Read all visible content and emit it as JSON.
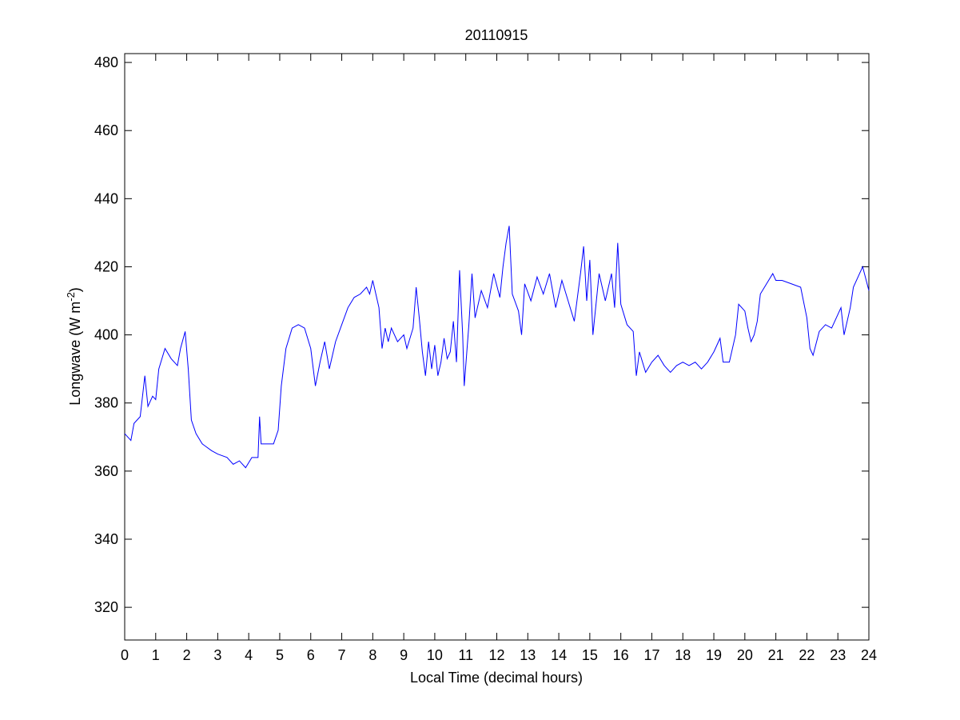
{
  "chart_data": {
    "type": "line",
    "title": "20110915",
    "xlabel": "Local Time (decimal hours)",
    "ylabel": {
      "text": "Longwave (W m",
      "superscript": "-2",
      "suffix": ")"
    },
    "xlim": [
      0,
      24
    ],
    "xticks": [
      0,
      1,
      2,
      3,
      4,
      5,
      6,
      7,
      8,
      9,
      10,
      11,
      12,
      13,
      14,
      15,
      16,
      17,
      18,
      19,
      20,
      21,
      22,
      23,
      24
    ],
    "ylim": [
      310.4,
      482.6
    ],
    "yticks": [
      320,
      340,
      360,
      380,
      400,
      420,
      440,
      460,
      480
    ],
    "grid": false,
    "series": [
      {
        "color": "#0000ff",
        "x": [
          0,
          0.2,
          0.3,
          0.5,
          0.65,
          0.75,
          0.9,
          1.0,
          1.1,
          1.3,
          1.5,
          1.7,
          1.8,
          1.95,
          2.05,
          2.15,
          2.3,
          2.5,
          2.8,
          3.0,
          3.3,
          3.5,
          3.7,
          3.9,
          4.1,
          4.3,
          4.35,
          4.4,
          4.6,
          4.8,
          4.95,
          5.05,
          5.2,
          5.4,
          5.6,
          5.8,
          6.0,
          6.15,
          6.3,
          6.45,
          6.6,
          6.8,
          7.0,
          7.2,
          7.4,
          7.6,
          7.8,
          7.9,
          8.0,
          8.1,
          8.2,
          8.3,
          8.4,
          8.5,
          8.6,
          8.8,
          9.0,
          9.1,
          9.3,
          9.4,
          9.5,
          9.6,
          9.7,
          9.8,
          9.9,
          10.0,
          10.1,
          10.2,
          10.3,
          10.4,
          10.5,
          10.6,
          10.7,
          10.8,
          10.9,
          10.95,
          11.1,
          11.2,
          11.3,
          11.5,
          11.7,
          11.9,
          12.1,
          12.2,
          12.3,
          12.4,
          12.5,
          12.7,
          12.8,
          12.9,
          13.1,
          13.3,
          13.5,
          13.7,
          13.9,
          14.1,
          14.3,
          14.5,
          14.7,
          14.8,
          14.9,
          15.0,
          15.1,
          15.3,
          15.5,
          15.7,
          15.8,
          15.9,
          16.0,
          16.2,
          16.4,
          16.5,
          16.6,
          16.8,
          17.0,
          17.2,
          17.4,
          17.6,
          17.8,
          18.0,
          18.2,
          18.4,
          18.6,
          18.8,
          19.0,
          19.2,
          19.3,
          19.5,
          19.7,
          19.8,
          20.0,
          20.1,
          20.2,
          20.3,
          20.4,
          20.5,
          20.7,
          20.9,
          21.0,
          21.2,
          21.5,
          21.8,
          22.0,
          22.1,
          22.2,
          22.4,
          22.6,
          22.8,
          23.0,
          23.1,
          23.2,
          23.4,
          23.5,
          23.7,
          23.8,
          24.0
        ],
        "values": [
          371,
          369,
          374,
          376,
          388,
          379,
          382,
          381,
          390,
          396,
          393,
          391,
          396,
          401,
          390,
          375,
          371,
          368,
          366,
          365,
          364,
          362,
          363,
          361,
          364,
          364,
          376,
          368,
          368,
          368,
          372,
          385,
          396,
          402,
          403,
          402,
          396,
          385,
          392,
          398,
          390,
          398,
          403,
          408,
          411,
          412,
          414,
          412,
          416,
          412,
          408,
          396,
          402,
          398,
          402,
          398,
          400,
          396,
          402,
          414,
          405,
          395,
          388,
          398,
          390,
          397,
          388,
          392,
          399,
          393,
          395,
          404,
          392,
          419,
          400,
          385,
          403,
          418,
          405,
          413,
          408,
          418,
          411,
          420,
          427,
          432,
          412,
          407,
          400,
          415,
          410,
          417,
          412,
          418,
          408,
          416,
          410,
          404,
          418,
          426,
          410,
          422,
          400,
          418,
          410,
          418,
          408,
          427,
          409,
          403,
          401,
          388,
          395,
          389,
          392,
          394,
          391,
          389,
          391,
          392,
          391,
          392,
          390,
          392,
          395,
          399,
          392,
          392,
          400,
          409,
          407,
          402,
          398,
          400,
          404,
          412,
          415,
          418,
          416,
          416,
          415,
          414,
          405,
          396,
          394,
          401,
          403,
          402,
          406,
          408,
          400,
          408,
          414,
          418,
          420,
          413
        ]
      }
    ]
  }
}
